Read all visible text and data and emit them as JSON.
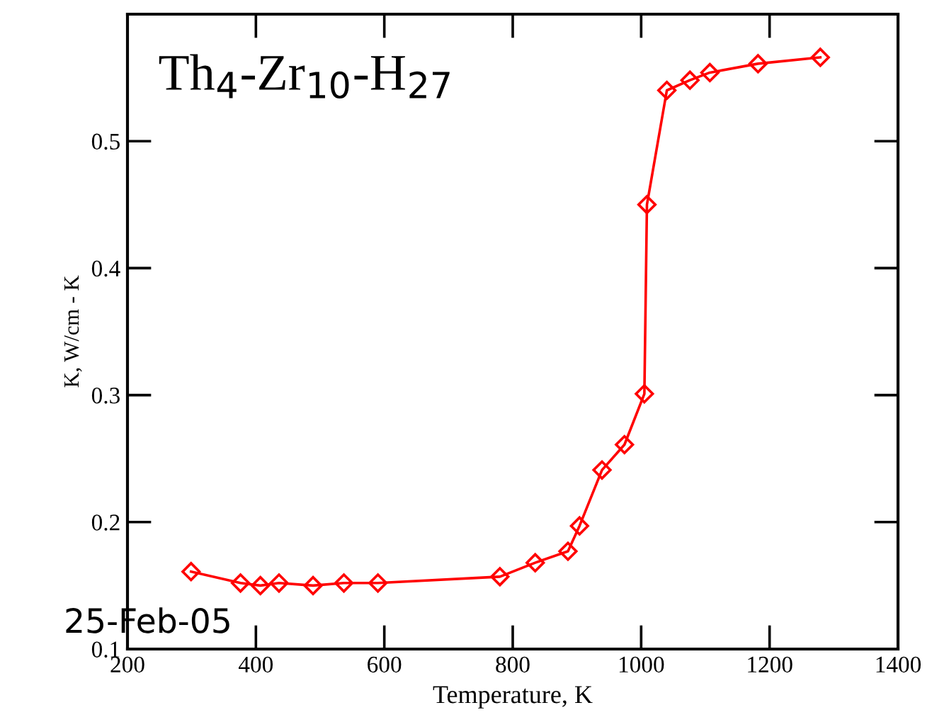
{
  "chart_data": {
    "type": "line",
    "title": "Th$_{4}$-Zr$_{10}$-H$_{27}$",
    "xlabel": "Temperature, K",
    "ylabel": "K, W/cm - K",
    "annotations": [
      "25-Feb-05"
    ],
    "x": [
      299,
      376,
      407,
      436,
      489,
      537,
      590,
      780,
      835,
      886,
      904,
      939,
      974,
      1005,
      1009,
      1040,
      1076,
      1107,
      1182,
      1279
    ],
    "series": [
      {
        "color": "#ff0000",
        "values": [
          0.161,
          0.152,
          0.15,
          0.152,
          0.15,
          0.152,
          0.152,
          0.157,
          0.168,
          0.177,
          0.197,
          0.241,
          0.261,
          0.301,
          0.45,
          0.54,
          0.548,
          0.554,
          0.561,
          0.566
        ]
      }
    ],
    "marker": "diamond",
    "line_style": "solid",
    "grid": false,
    "legend": false,
    "xlim": [
      200,
      1400
    ],
    "xticks": [
      200,
      400,
      600,
      800,
      1000,
      1200,
      1400
    ],
    "ylim": [
      0.1,
      0.6
    ],
    "yticks": [
      0.1,
      0.2,
      0.3,
      0.4,
      0.5,
      {
        "value": 0.6,
        "label": null
      }
    ]
  }
}
